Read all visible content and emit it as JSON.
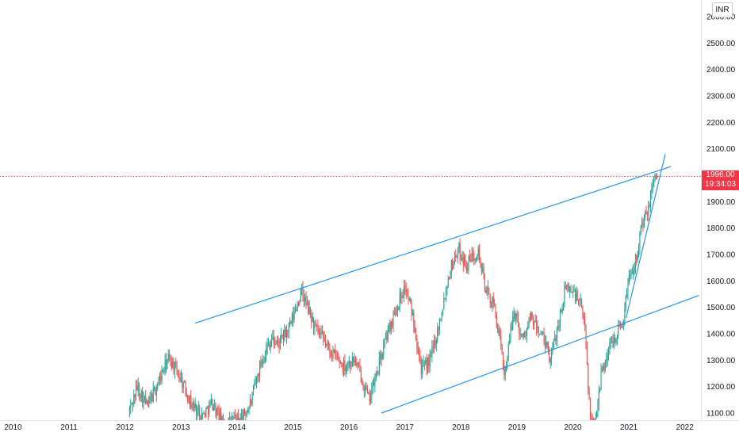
{
  "currency": "INR",
  "last_price": {
    "price": "1996.00",
    "countdown": "19:34:03"
  },
  "colors": {
    "up": "#26a69a",
    "down": "#ef5350",
    "trendline": "#2196f3",
    "last_price": "#f23645",
    "axis_text": "#131722"
  },
  "chart_data": {
    "type": "candlestick",
    "interval": "weekly",
    "x_axis_ticks": [
      "2010",
      "2011",
      "2012",
      "2013",
      "2014",
      "2015",
      "2016",
      "2017",
      "2018",
      "2019",
      "2020",
      "2021",
      "2022"
    ],
    "y_axis_ticks": [
      "1100.00",
      "1200.00",
      "1300.00",
      "1400.00",
      "1500.00",
      "1600.00",
      "1700.00",
      "1800.00",
      "1900.00",
      "2000.00",
      "2100.00",
      "2200.00",
      "2300.00",
      "2400.00",
      "2500.00",
      "2600.00"
    ],
    "ylim": [
      1077,
      2625
    ],
    "xlim": [
      2009.8,
      2022.25
    ],
    "last_price": 1996,
    "price_waypoints": [
      [
        2012.08,
        1110
      ],
      [
        2012.22,
        1200
      ],
      [
        2012.4,
        1125
      ],
      [
        2012.58,
        1210
      ],
      [
        2012.78,
        1310
      ],
      [
        2013.0,
        1230
      ],
      [
        2013.18,
        1135
      ],
      [
        2013.38,
        1090
      ],
      [
        2013.55,
        1140
      ],
      [
        2013.75,
        1060
      ],
      [
        2014.1,
        1080
      ],
      [
        2014.25,
        1140
      ],
      [
        2014.42,
        1290
      ],
      [
        2014.6,
        1380
      ],
      [
        2014.75,
        1360
      ],
      [
        2014.95,
        1430
      ],
      [
        2015.15,
        1560
      ],
      [
        2015.4,
        1420
      ],
      [
        2015.65,
        1340
      ],
      [
        2015.9,
        1280
      ],
      [
        2016.1,
        1300
      ],
      [
        2016.25,
        1220
      ],
      [
        2016.35,
        1150
      ],
      [
        2016.5,
        1250
      ],
      [
        2016.65,
        1380
      ],
      [
        2016.88,
        1520
      ],
      [
        2017.0,
        1580
      ],
      [
        2017.15,
        1460
      ],
      [
        2017.3,
        1260
      ],
      [
        2017.45,
        1300
      ],
      [
        2017.6,
        1430
      ],
      [
        2017.8,
        1640
      ],
      [
        2017.95,
        1720
      ],
      [
        2018.1,
        1660
      ],
      [
        2018.3,
        1720
      ],
      [
        2018.45,
        1560
      ],
      [
        2018.6,
        1500
      ],
      [
        2018.78,
        1250
      ],
      [
        2018.95,
        1490
      ],
      [
        2019.1,
        1380
      ],
      [
        2019.25,
        1460
      ],
      [
        2019.45,
        1390
      ],
      [
        2019.6,
        1300
      ],
      [
        2019.75,
        1450
      ],
      [
        2019.88,
        1580
      ],
      [
        2020.0,
        1560
      ],
      [
        2020.12,
        1520
      ],
      [
        2020.22,
        1430
      ],
      [
        2020.3,
        1100
      ],
      [
        2020.38,
        1050
      ],
      [
        2020.5,
        1240
      ],
      [
        2020.65,
        1350
      ],
      [
        2020.78,
        1400
      ],
      [
        2020.9,
        1450
      ],
      [
        2021.0,
        1620
      ],
      [
        2021.12,
        1680
      ],
      [
        2021.22,
        1800
      ],
      [
        2021.35,
        1870
      ],
      [
        2021.45,
        2000
      ],
      [
        2021.52,
        1996
      ]
    ],
    "trendlines": [
      {
        "from": [
          2013.25,
          1440
        ],
        "to": [
          2021.75,
          2033
        ]
      },
      {
        "from": [
          2016.58,
          1100
        ],
        "to": [
          2022.25,
          1545
        ]
      },
      {
        "from": [
          2020.95,
          1460
        ],
        "to": [
          2021.65,
          2080
        ]
      }
    ]
  }
}
